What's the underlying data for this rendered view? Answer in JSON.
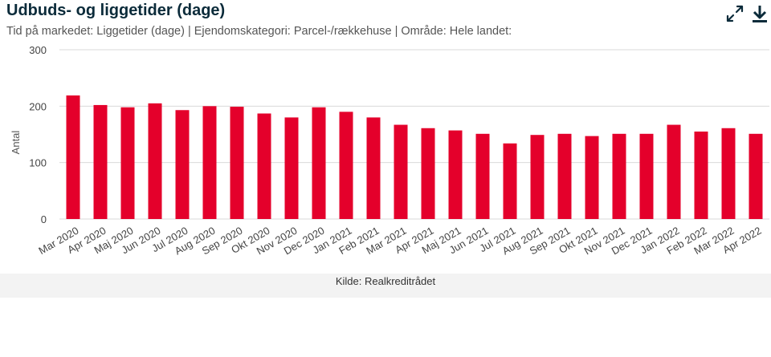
{
  "header": {
    "title": "Udbuds- og liggetider (dage)",
    "subtitle": "Tid på markedet: Liggetider (dage) | Ejendomskategori: Parcel-/rækkehuse | Område: Hele landet:",
    "expand_icon": "expand-icon",
    "download_icon": "download-icon"
  },
  "footer": {
    "source": "Kilde: Realkreditrådet"
  },
  "chart_data": {
    "type": "bar",
    "ylabel": "Antal",
    "xlabel": "",
    "ylim": [
      0,
      300
    ],
    "yticks": [
      0,
      100,
      200,
      300
    ],
    "grid": true,
    "bar_color": "#e4002b",
    "categories": [
      "Mar 2020",
      "Apr 2020",
      "Maj 2020",
      "Jun 2020",
      "Jul 2020",
      "Aug 2020",
      "Sep 2020",
      "Okt 2020",
      "Nov 2020",
      "Dec 2020",
      "Jan 2021",
      "Feb 2021",
      "Mar 2021",
      "Apr 2021",
      "Maj 2021",
      "Jun 2021",
      "Jul 2021",
      "Aug 2021",
      "Sep 2021",
      "Okt 2021",
      "Nov 2021",
      "Dec 2021",
      "Jan 2022",
      "Feb 2022",
      "Mar 2022",
      "Apr 2022"
    ],
    "values": [
      219,
      202,
      198,
      205,
      193,
      200,
      199,
      187,
      180,
      198,
      190,
      180,
      167,
      161,
      157,
      151,
      134,
      149,
      151,
      147,
      151,
      151,
      167,
      155,
      161,
      151
    ]
  }
}
